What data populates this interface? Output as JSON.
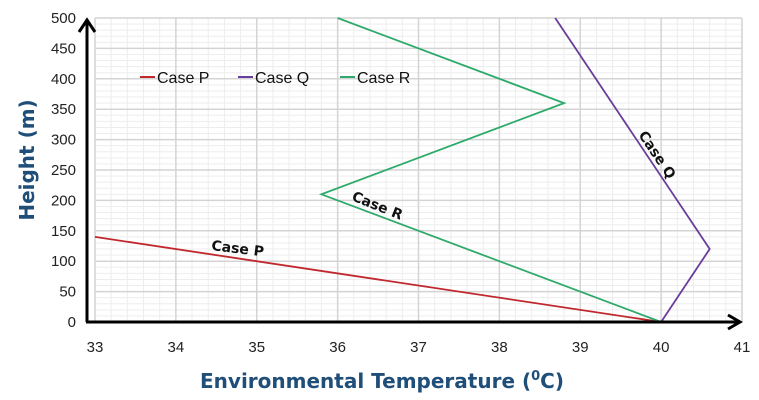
{
  "chart_data": {
    "type": "line",
    "title": "",
    "xlabel": "Environmental Temperature (",
    "xlabel_sup": "0",
    "xlabel_end": "C)",
    "ylabel": "Height (m)",
    "xlim": [
      33,
      41
    ],
    "ylim": [
      0,
      500
    ],
    "x_ticks": [
      "33",
      "34",
      "35",
      "36",
      "37",
      "38",
      "39",
      "40",
      "41"
    ],
    "y_ticks": [
      "0",
      "50",
      "100",
      "150",
      "200",
      "250",
      "300",
      "350",
      "400",
      "450",
      "500"
    ],
    "grid": true,
    "legend_position": "top-left",
    "series": [
      {
        "name": "Case P",
        "color": "#c0282d",
        "points": [
          [
            33,
            140
          ],
          [
            40,
            0
          ]
        ],
        "annotation": "Case P"
      },
      {
        "name": "Case Q",
        "color": "#6a3d9a",
        "points": [
          [
            38.69,
            500
          ],
          [
            40.6,
            120
          ],
          [
            40,
            0
          ]
        ],
        "annotation": "Case Q"
      },
      {
        "name": "Case R",
        "color": "#2eaa6a",
        "points": [
          [
            36,
            500
          ],
          [
            38.8,
            360
          ],
          [
            35.8,
            210
          ],
          [
            40,
            0
          ]
        ],
        "annotation": "Case R"
      }
    ]
  }
}
